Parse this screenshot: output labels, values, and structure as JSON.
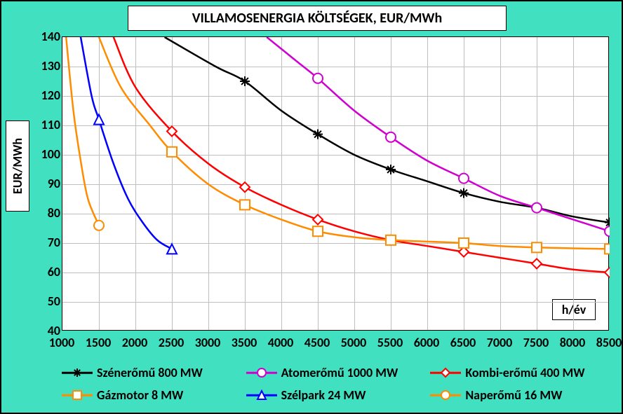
{
  "title": "VILLAMOSENERGIA KÖLTSÉGEK, EUR/MWh",
  "ylabel": "EUR/MWh",
  "xlabel": "h/év",
  "background_color": "#40e0c0",
  "plot_bg": "#ffffff",
  "grid_color": "#bfbfbf",
  "border_color": "#000000",
  "xlim": [
    1000,
    8500
  ],
  "ylim": [
    40,
    140
  ],
  "xticks": [
    1000,
    1500,
    2000,
    2500,
    3000,
    3500,
    4000,
    4500,
    5000,
    5500,
    6000,
    6500,
    7000,
    7500,
    8000,
    8500
  ],
  "yticks": [
    40,
    50,
    60,
    70,
    80,
    90,
    100,
    110,
    120,
    130,
    140
  ],
  "tick_fontsize": 18,
  "tick_fontweight": "bold",
  "title_fontsize": 20,
  "label_fontsize": 18,
  "series": [
    {
      "name": "Szénerőmű 800 MW",
      "color": "#000000",
      "marker": "asterisk",
      "line_width": 2.5,
      "data": [
        [
          3500,
          125
        ],
        [
          4500,
          107
        ],
        [
          5500,
          95
        ],
        [
          6500,
          87
        ],
        [
          7500,
          82
        ],
        [
          8500,
          77
        ]
      ],
      "curve": [
        [
          2400,
          140
        ],
        [
          3100,
          130
        ],
        [
          3500,
          125
        ],
        [
          4000,
          115
        ],
        [
          4500,
          107
        ],
        [
          5000,
          100
        ],
        [
          5500,
          95
        ],
        [
          6000,
          91
        ],
        [
          6500,
          87
        ],
        [
          7000,
          84
        ],
        [
          7500,
          82
        ],
        [
          8000,
          79
        ],
        [
          8500,
          77
        ]
      ]
    },
    {
      "name": "Atomerőmű 1000 MW",
      "color": "#d000d0",
      "marker": "circle",
      "line_width": 2.5,
      "data": [
        [
          4500,
          126
        ],
        [
          5500,
          106
        ],
        [
          6500,
          92
        ],
        [
          7500,
          82
        ],
        [
          8500,
          74
        ]
      ],
      "curve": [
        [
          3800,
          140
        ],
        [
          4200,
          132
        ],
        [
          4500,
          126
        ],
        [
          5000,
          115
        ],
        [
          5500,
          106
        ],
        [
          6000,
          98
        ],
        [
          6500,
          92
        ],
        [
          7000,
          86
        ],
        [
          7500,
          82
        ],
        [
          8000,
          78
        ],
        [
          8500,
          74
        ]
      ]
    },
    {
      "name": "Kombi-erőmű 400 MW",
      "color": "#ff0000",
      "marker": "diamond",
      "line_width": 2.5,
      "data": [
        [
          2500,
          108
        ],
        [
          3500,
          89
        ],
        [
          4500,
          78
        ],
        [
          5500,
          71
        ],
        [
          6500,
          67
        ],
        [
          7500,
          63
        ],
        [
          8500,
          60
        ]
      ],
      "curve": [
        [
          1700,
          140
        ],
        [
          2000,
          123
        ],
        [
          2500,
          108
        ],
        [
          3000,
          97
        ],
        [
          3500,
          89
        ],
        [
          4000,
          83
        ],
        [
          4500,
          78
        ],
        [
          5000,
          74
        ],
        [
          5500,
          71
        ],
        [
          6000,
          69
        ],
        [
          6500,
          67
        ],
        [
          7000,
          65
        ],
        [
          7500,
          63
        ],
        [
          8000,
          61
        ],
        [
          8500,
          60
        ]
      ]
    },
    {
      "name": "Gázmotor 8 MW",
      "color": "#ff8c00",
      "marker": "square",
      "line_width": 2.5,
      "data": [
        [
          2500,
          101
        ],
        [
          3500,
          83
        ],
        [
          4500,
          74
        ],
        [
          5500,
          71
        ],
        [
          6500,
          70
        ],
        [
          7500,
          68.5
        ],
        [
          8500,
          68
        ]
      ],
      "curve": [
        [
          1500,
          140
        ],
        [
          1800,
          123
        ],
        [
          2200,
          110
        ],
        [
          2500,
          101
        ],
        [
          3000,
          90
        ],
        [
          3500,
          83
        ],
        [
          4000,
          78
        ],
        [
          4500,
          74
        ],
        [
          5000,
          72
        ],
        [
          5500,
          71
        ],
        [
          6000,
          70.5
        ],
        [
          6500,
          70
        ],
        [
          7000,
          69
        ],
        [
          7500,
          68.5
        ],
        [
          8000,
          68.2
        ],
        [
          8500,
          68
        ]
      ]
    },
    {
      "name": "Szélpark 24 MW",
      "color": "#0000ff",
      "marker": "triangle",
      "line_width": 2.5,
      "data": [
        [
          1500,
          112
        ],
        [
          2500,
          68
        ]
      ],
      "curve": [
        [
          1250,
          140
        ],
        [
          1400,
          120
        ],
        [
          1500,
          112
        ],
        [
          1700,
          97
        ],
        [
          1900,
          85
        ],
        [
          2100,
          77
        ],
        [
          2300,
          71
        ],
        [
          2500,
          68
        ]
      ]
    },
    {
      "name": "Naperőmű 16 MW",
      "color": "#ff8c00",
      "marker": "circle",
      "line_width": 2.5,
      "data": [
        [
          1500,
          76
        ]
      ],
      "curve": [
        [
          1050,
          140
        ],
        [
          1150,
          115
        ],
        [
          1250,
          98
        ],
        [
          1350,
          85
        ],
        [
          1500,
          76
        ]
      ]
    }
  ],
  "legend_layout": {
    "cols": 3,
    "rows": 2
  }
}
